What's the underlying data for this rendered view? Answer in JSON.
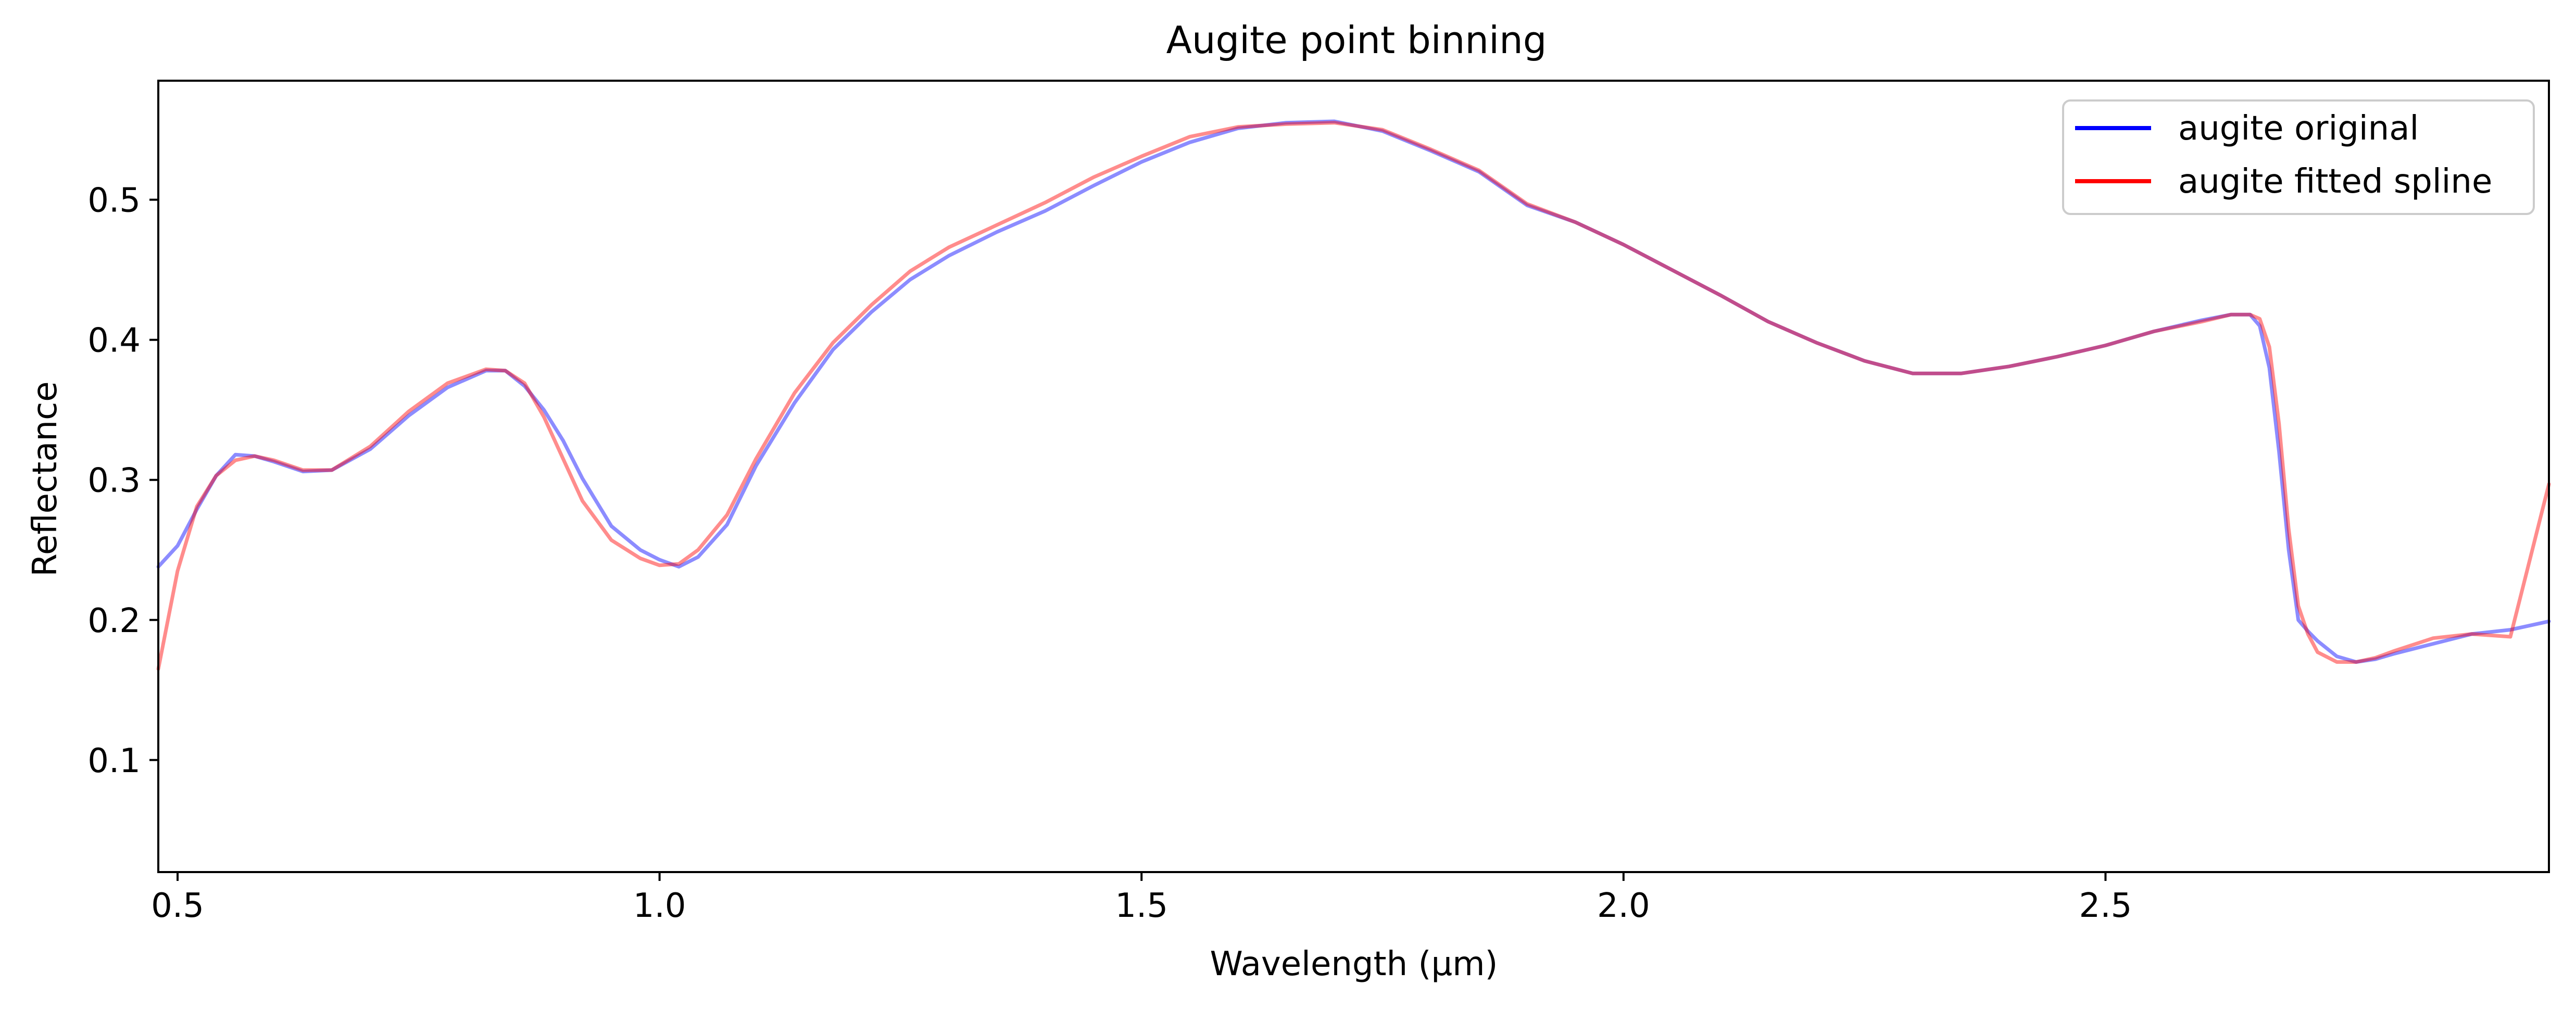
{
  "chart_data": {
    "type": "line",
    "title": "Augite point binning",
    "xlabel": "Wavelength (μm)",
    "ylabel": "Reflectance",
    "xlim": [
      0.48,
      2.96
    ],
    "ylim": [
      0.02,
      0.585
    ],
    "xticks": [
      0.5,
      1.0,
      1.5,
      2.0,
      2.5
    ],
    "xtick_labels": [
      "0.5",
      "1.0",
      "1.5",
      "2.0",
      "2.5"
    ],
    "yticks": [
      0.1,
      0.2,
      0.3,
      0.4,
      0.5
    ],
    "ytick_labels": [
      "0.1",
      "0.2",
      "0.3",
      "0.4",
      "0.5"
    ],
    "grid": false,
    "legend_position": "upper-right",
    "legend_entries": [
      {
        "label": "augite original",
        "color": "#0000ff"
      },
      {
        "label": "augite fitted spline",
        "color": "#ff0000"
      }
    ],
    "series": [
      {
        "name": "augite original",
        "color": "#0000ff",
        "opacity": 0.45,
        "x": [
          0.48,
          0.5,
          0.52,
          0.54,
          0.56,
          0.58,
          0.6,
          0.63,
          0.66,
          0.7,
          0.74,
          0.78,
          0.82,
          0.84,
          0.86,
          0.88,
          0.9,
          0.92,
          0.95,
          0.98,
          1.0,
          1.02,
          1.04,
          1.07,
          1.1,
          1.14,
          1.18,
          1.22,
          1.26,
          1.3,
          1.35,
          1.4,
          1.45,
          1.5,
          1.55,
          1.6,
          1.65,
          1.7,
          1.75,
          1.8,
          1.85,
          1.9,
          1.95,
          2.0,
          2.05,
          2.1,
          2.15,
          2.2,
          2.25,
          2.3,
          2.35,
          2.4,
          2.45,
          2.5,
          2.55,
          2.6,
          2.63,
          2.65,
          2.66,
          2.67,
          2.68,
          2.69,
          2.7,
          2.71,
          2.72,
          2.74,
          2.76,
          2.78,
          2.8,
          2.84,
          2.88,
          2.92,
          2.96
        ],
        "y": [
          0.238,
          0.253,
          0.279,
          0.303,
          0.318,
          0.317,
          0.313,
          0.306,
          0.307,
          0.322,
          0.346,
          0.366,
          0.378,
          0.378,
          0.367,
          0.35,
          0.328,
          0.301,
          0.267,
          0.25,
          0.243,
          0.238,
          0.245,
          0.268,
          0.31,
          0.355,
          0.393,
          0.42,
          0.443,
          0.46,
          0.477,
          0.492,
          0.51,
          0.527,
          0.541,
          0.551,
          0.555,
          0.556,
          0.549,
          0.535,
          0.52,
          0.496,
          0.484,
          0.468,
          0.45,
          0.432,
          0.413,
          0.398,
          0.385,
          0.376,
          0.376,
          0.381,
          0.388,
          0.396,
          0.406,
          0.414,
          0.418,
          0.418,
          0.41,
          0.38,
          0.32,
          0.25,
          0.2,
          0.192,
          0.185,
          0.174,
          0.17,
          0.172,
          0.176,
          0.183,
          0.19,
          0.193,
          0.199
        ]
      },
      {
        "name": "augite fitted spline",
        "color": "#ff0000",
        "opacity": 0.45,
        "x": [
          0.48,
          0.5,
          0.52,
          0.54,
          0.56,
          0.58,
          0.6,
          0.63,
          0.66,
          0.7,
          0.74,
          0.78,
          0.82,
          0.84,
          0.86,
          0.88,
          0.9,
          0.92,
          0.95,
          0.98,
          1.0,
          1.02,
          1.04,
          1.07,
          1.1,
          1.14,
          1.18,
          1.22,
          1.26,
          1.3,
          1.35,
          1.4,
          1.45,
          1.5,
          1.55,
          1.6,
          1.65,
          1.7,
          1.75,
          1.8,
          1.85,
          1.9,
          1.95,
          2.0,
          2.05,
          2.1,
          2.15,
          2.2,
          2.25,
          2.3,
          2.35,
          2.4,
          2.45,
          2.5,
          2.55,
          2.6,
          2.63,
          2.65,
          2.66,
          2.67,
          2.68,
          2.69,
          2.7,
          2.71,
          2.72,
          2.74,
          2.76,
          2.78,
          2.8,
          2.84,
          2.88,
          2.92,
          2.96
        ],
        "y": [
          0.165,
          0.235,
          0.281,
          0.303,
          0.314,
          0.317,
          0.314,
          0.307,
          0.307,
          0.324,
          0.349,
          0.369,
          0.379,
          0.378,
          0.369,
          0.345,
          0.315,
          0.285,
          0.257,
          0.244,
          0.239,
          0.24,
          0.25,
          0.275,
          0.315,
          0.362,
          0.398,
          0.425,
          0.449,
          0.466,
          0.482,
          0.498,
          0.516,
          0.531,
          0.545,
          0.552,
          0.554,
          0.555,
          0.55,
          0.536,
          0.521,
          0.497,
          0.484,
          0.468,
          0.45,
          0.432,
          0.413,
          0.398,
          0.385,
          0.376,
          0.376,
          0.381,
          0.388,
          0.396,
          0.406,
          0.413,
          0.418,
          0.418,
          0.415,
          0.395,
          0.34,
          0.265,
          0.21,
          0.19,
          0.177,
          0.17,
          0.17,
          0.173,
          0.178,
          0.187,
          0.19,
          0.188,
          0.297
        ]
      }
    ]
  }
}
